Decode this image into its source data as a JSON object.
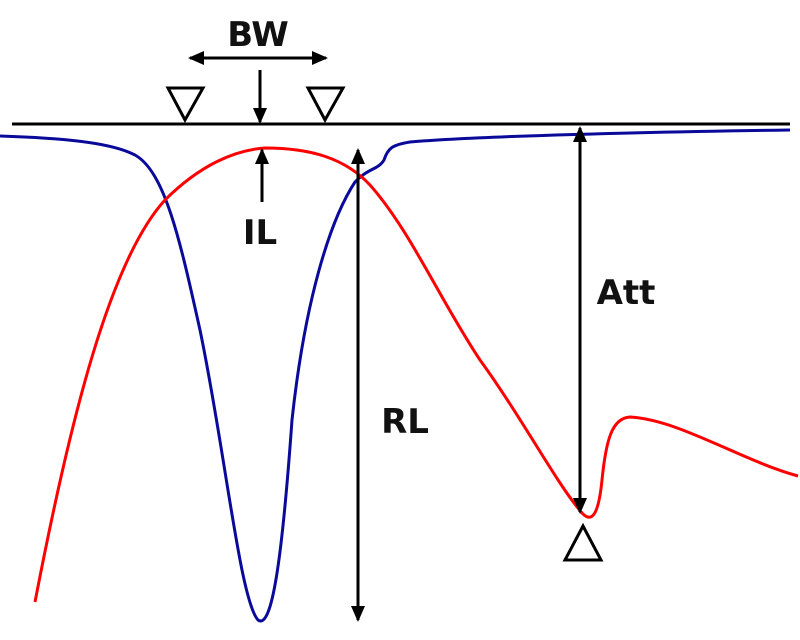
{
  "labels": {
    "bandwidth": "BW",
    "insertion_loss": "IL",
    "return_loss": "RL",
    "attenuation": "Att"
  },
  "colors": {
    "reference_line": "#000000",
    "blue_curve": "#0a0a9a",
    "red_curve": "#ff0000",
    "annotations": "#000000"
  },
  "markers": {
    "band_edge_markers": "down-triangle",
    "attenuation_marker": "up-triangle"
  }
}
